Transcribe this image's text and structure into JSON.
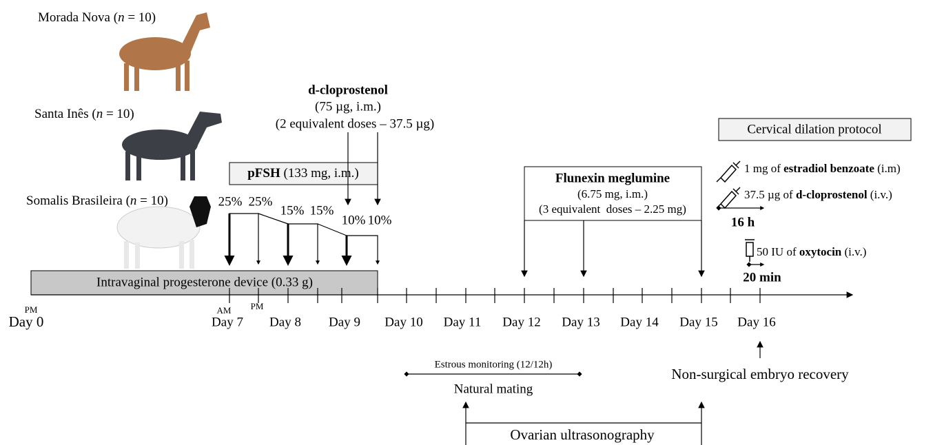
{
  "breeds": [
    [
      "Morada Nova (",
      "n",
      " = 10)"
    ],
    [
      "Santa Inês (",
      "n",
      " = 10)"
    ],
    [
      "Somalis Brasileira (",
      "n",
      " = 10)"
    ]
  ],
  "timeline": {
    "days": [
      "Day 0",
      "Day 7",
      "Day 8",
      "Day 9",
      "Day 10",
      "Day 11",
      "Day 12",
      "Day 13",
      "Day 14",
      "Day 15",
      "Day 16"
    ],
    "time_marks": [
      "PM",
      "AM",
      "PM"
    ]
  },
  "progesterone_device": "Intravaginal progesterone device (0.33 g)",
  "pfsh": [
    "pFSH",
    " (133 mg, i.m.)"
  ],
  "pfsh_doses": [
    "25%",
    "25%",
    "15%",
    "15%",
    "10%",
    "10%"
  ],
  "cloprostenol": {
    "name": "d-cloprostenol",
    "lines": [
      "(75 µg, i.m.)",
      "(2 equivalent doses – 37.5 µg)"
    ]
  },
  "flunexin": {
    "name": "Flunexin meglumine",
    "lines": [
      "(6.75 mg, i.m.)",
      "(3 equivalent  doses – 2.25 mg)"
    ]
  },
  "cervical": {
    "title": "Cervical dilation protocol",
    "steps": [
      [
        "1 mg of ",
        "estradiol benzoate",
        " (i.m)"
      ],
      [
        "37.5 µg of ",
        "d-cloprostenol",
        " (i.v.)"
      ],
      [
        "50 IU of ",
        "oxytocin",
        " (i.v.)"
      ]
    ],
    "intervals": [
      "16 h",
      "20 min"
    ]
  },
  "estrous_monitoring": "Estrous monitoring (12/12h)",
  "natural_mating": "Natural mating",
  "embryo_recovery": "Non-surgical embryo recovery",
  "ovarian_ultrasonography": "Ovarian ultrasonography"
}
